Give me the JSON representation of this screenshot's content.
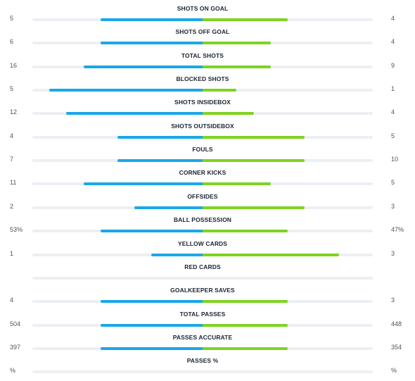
{
  "colors": {
    "home": "#1aa7e8",
    "away": "#7ed321",
    "track": "#eceff3"
  },
  "stats": [
    {
      "label": "SHOTS ON GOAL",
      "home": "5",
      "away": "4",
      "home_bar": 0.6,
      "away_bar": 0.5
    },
    {
      "label": "SHOTS OFF GOAL",
      "home": "6",
      "away": "4",
      "home_bar": 0.6,
      "away_bar": 0.4
    },
    {
      "label": "TOTAL SHOTS",
      "home": "16",
      "away": "9",
      "home_bar": 0.7,
      "away_bar": 0.4
    },
    {
      "label": "BLOCKED SHOTS",
      "home": "5",
      "away": "1",
      "home_bar": 0.9,
      "away_bar": 0.2
    },
    {
      "label": "SHOTS INSIDEBOX",
      "home": "12",
      "away": "4",
      "home_bar": 0.8,
      "away_bar": 0.3
    },
    {
      "label": "SHOTS OUTSIDEBOX",
      "home": "4",
      "away": "5",
      "home_bar": 0.5,
      "away_bar": 0.6
    },
    {
      "label": "FOULS",
      "home": "7",
      "away": "10",
      "home_bar": 0.5,
      "away_bar": 0.6
    },
    {
      "label": "CORNER KICKS",
      "home": "11",
      "away": "5",
      "home_bar": 0.7,
      "away_bar": 0.4
    },
    {
      "label": "OFFSIDES",
      "home": "2",
      "away": "3",
      "home_bar": 0.4,
      "away_bar": 0.6
    },
    {
      "label": "BALL POSSESSION",
      "home": "53%",
      "away": "47%",
      "home_bar": 0.6,
      "away_bar": 0.5
    },
    {
      "label": "YELLOW CARDS",
      "home": "1",
      "away": "3",
      "home_bar": 0.3,
      "away_bar": 0.8
    },
    {
      "label": "RED CARDS",
      "home": "",
      "away": "",
      "home_bar": 0,
      "away_bar": 0
    },
    {
      "label": "GOALKEEPER SAVES",
      "home": "4",
      "away": "3",
      "home_bar": 0.6,
      "away_bar": 0.5
    },
    {
      "label": "TOTAL PASSES",
      "home": "504",
      "away": "448",
      "home_bar": 0.6,
      "away_bar": 0.5
    },
    {
      "label": "PASSES ACCURATE",
      "home": "397",
      "away": "354",
      "home_bar": 0.6,
      "away_bar": 0.5
    },
    {
      "label": "PASSES %",
      "home": "%",
      "away": "%",
      "home_bar": 0,
      "away_bar": 0
    }
  ]
}
